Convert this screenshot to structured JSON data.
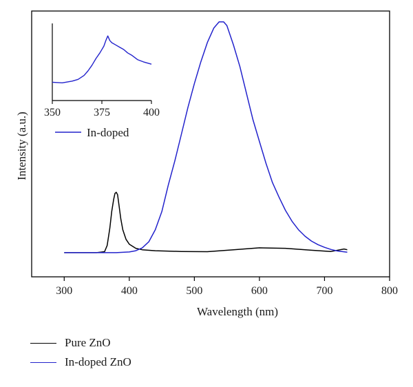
{
  "chart_data": [
    {
      "type": "line",
      "xlabel": "Wavelength (nm)",
      "ylabel": "Intensity (a.u.)",
      "xlim": [
        250,
        800
      ],
      "xticks": [
        300,
        400,
        500,
        600,
        700,
        800
      ],
      "ylim": [
        -0.1,
        1.0
      ],
      "y_tick_labels_shown": false,
      "grid": false,
      "legend_position": "below-left",
      "series": [
        {
          "name": "Pure ZnO",
          "color": "#000000",
          "x": [
            300,
            350,
            362,
            366,
            370,
            373,
            376,
            378,
            380,
            382,
            384,
            387,
            390,
            395,
            400,
            410,
            420,
            440,
            480,
            520,
            560,
            600,
            640,
            680,
            710,
            730,
            735
          ],
          "y": [
            0.0,
            0.0,
            0.004,
            0.03,
            0.1,
            0.17,
            0.22,
            0.245,
            0.25,
            0.24,
            0.2,
            0.14,
            0.095,
            0.055,
            0.035,
            0.018,
            0.012,
            0.008,
            0.005,
            0.004,
            0.012,
            0.02,
            0.018,
            0.01,
            0.005,
            0.015,
            0.012
          ]
        },
        {
          "name": "In-doped ZnO",
          "color": "#2222cc",
          "x": [
            300,
            380,
            400,
            410,
            420,
            430,
            440,
            450,
            460,
            470,
            480,
            490,
            500,
            510,
            520,
            530,
            538,
            545,
            550,
            560,
            570,
            580,
            590,
            600,
            610,
            620,
            630,
            640,
            650,
            660,
            670,
            680,
            690,
            700,
            710,
            720,
            735
          ],
          "y": [
            0.0,
            0.0,
            0.003,
            0.008,
            0.02,
            0.045,
            0.095,
            0.17,
            0.28,
            0.38,
            0.49,
            0.6,
            0.7,
            0.79,
            0.87,
            0.93,
            0.955,
            0.955,
            0.94,
            0.86,
            0.77,
            0.66,
            0.55,
            0.46,
            0.37,
            0.29,
            0.23,
            0.175,
            0.13,
            0.095,
            0.068,
            0.048,
            0.033,
            0.022,
            0.013,
            0.007,
            0.002
          ]
        }
      ]
    },
    {
      "type": "line",
      "xlim": [
        350,
        400
      ],
      "xticks": [
        350,
        375,
        400
      ],
      "y_tick_labels_shown": false,
      "legend_position": "below",
      "series": [
        {
          "name": "In-doped",
          "color": "#2222cc",
          "x": [
            350,
            355,
            360,
            363,
            366,
            368,
            370,
            372,
            374,
            376,
            377,
            378,
            379,
            380,
            382,
            384,
            386,
            388,
            390,
            393,
            396,
            400
          ],
          "y": [
            0.08,
            0.07,
            0.1,
            0.13,
            0.2,
            0.28,
            0.38,
            0.5,
            0.6,
            0.72,
            0.82,
            0.9,
            0.82,
            0.78,
            0.74,
            0.7,
            0.66,
            0.6,
            0.56,
            0.48,
            0.44,
            0.4
          ]
        }
      ]
    }
  ]
}
